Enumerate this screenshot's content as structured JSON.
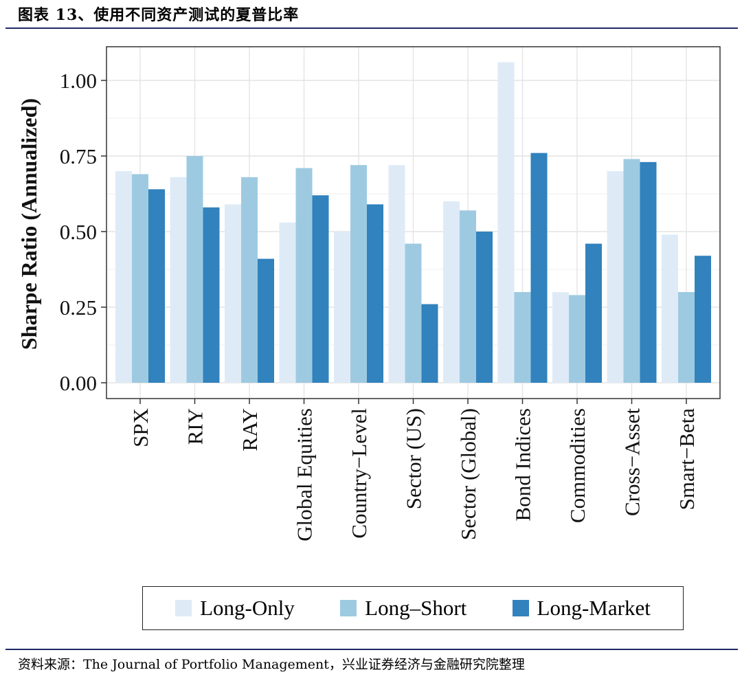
{
  "figure": {
    "title": "图表 13、使用不同资产测试的夏普比率",
    "source": "资料来源：The Journal of Portfolio Management，兴业证券经济与金融研究院整理"
  },
  "chart_data": {
    "type": "bar",
    "ylabel": "Sharpe Ratio (Annualized)",
    "xlabel": "",
    "ylim": [
      0,
      1.1
    ],
    "yticks": [
      "0.00",
      "0.25",
      "0.50",
      "0.75",
      "1.00"
    ],
    "grid": true,
    "legend_position": "bottom",
    "categories": [
      "SPX",
      "RIY",
      "RAY",
      "Global Equities",
      "Country−Level",
      "Sector (US)",
      "Sector (Global)",
      "Bond Indices",
      "Commodities",
      "Cross−Asset",
      "Smart−Beta"
    ],
    "series": [
      {
        "name": "Long-Only",
        "color": "#deebf7",
        "values": [
          0.7,
          0.68,
          0.59,
          0.53,
          0.5,
          0.72,
          0.6,
          1.06,
          0.3,
          0.7,
          0.49
        ]
      },
      {
        "name": "Long–Short",
        "color": "#9ecae1",
        "values": [
          0.69,
          0.75,
          0.68,
          0.71,
          0.72,
          0.46,
          0.57,
          0.3,
          0.29,
          0.74,
          0.3
        ]
      },
      {
        "name": "Long-Market",
        "color": "#3182bd",
        "values": [
          0.64,
          0.58,
          0.41,
          0.62,
          0.59,
          0.26,
          0.5,
          0.76,
          0.46,
          0.73,
          0.42
        ]
      }
    ]
  }
}
